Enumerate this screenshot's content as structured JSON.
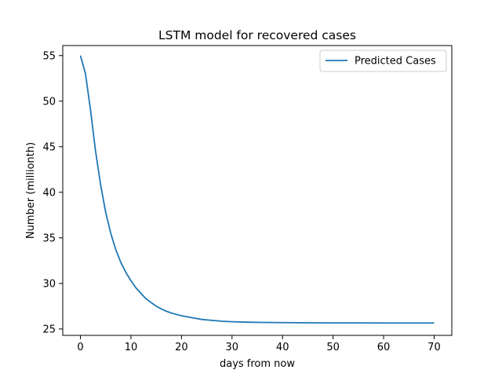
{
  "chart_data": {
    "type": "line",
    "title": "LSTM model for recovered cases",
    "xlabel": "days from now",
    "ylabel": "Number (millionth)",
    "xlim": [
      -3.5,
      73.5
    ],
    "ylim": [
      24.3,
      56.1
    ],
    "xticks": [
      0,
      10,
      20,
      30,
      40,
      50,
      60,
      70
    ],
    "yticks": [
      25,
      30,
      35,
      40,
      45,
      50,
      55
    ],
    "grid": false,
    "legend_position": "top-right",
    "series": [
      {
        "name": "Predicted Cases",
        "color": "#1f77b4",
        "x": [
          0,
          1,
          2,
          3,
          4,
          5,
          6,
          7,
          8,
          9,
          10,
          11,
          12,
          13,
          14,
          15,
          16,
          17,
          18,
          19,
          20,
          22,
          24,
          26,
          28,
          30,
          33,
          36,
          40,
          45,
          50,
          55,
          60,
          65,
          70
        ],
        "y": [
          55.0,
          53.0,
          49.0,
          44.5,
          40.8,
          37.8,
          35.5,
          33.7,
          32.3,
          31.2,
          30.3,
          29.5,
          28.9,
          28.3,
          27.9,
          27.5,
          27.2,
          26.95,
          26.75,
          26.6,
          26.45,
          26.25,
          26.05,
          25.95,
          25.85,
          25.8,
          25.75,
          25.72,
          25.7,
          25.68,
          25.67,
          25.67,
          25.66,
          25.66,
          25.66
        ]
      }
    ]
  }
}
